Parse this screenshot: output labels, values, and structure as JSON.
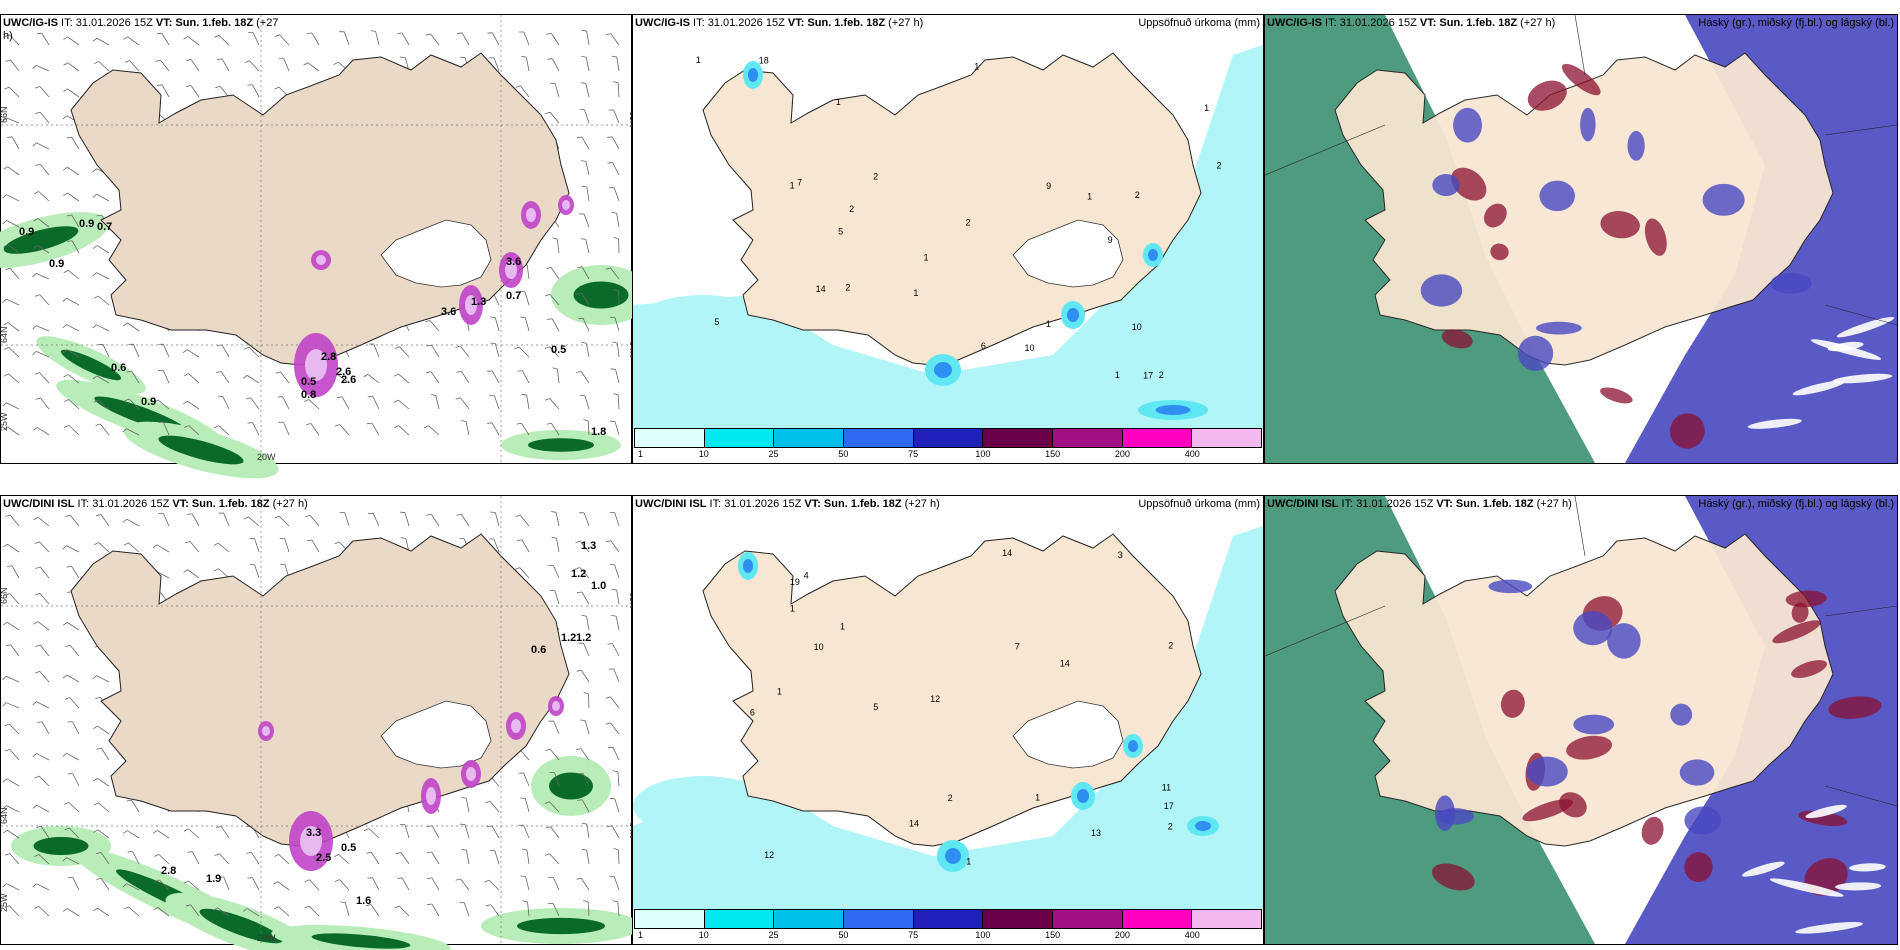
{
  "panels": [
    {
      "id": "p1",
      "title_model": "UWC/IG-IS",
      "title_it": " IT: 31.01.2026 15Z ",
      "title_vt": "VT: Sun. 1.feb. 18Z",
      "title_lead": " (+27",
      "title_lead2": "h)",
      "right_label": "",
      "style": "wind",
      "labels": [
        "0.9",
        "0.9",
        "0.7",
        "0.9",
        "0.6",
        "0.9",
        "2.8",
        "2.6",
        "2.6",
        "3.6",
        "1.3",
        "3.6",
        "0.7",
        "0.8",
        "0.5",
        "0.5",
        "1.8"
      ],
      "axis": [
        "66N",
        "64N",
        "25W",
        "20W",
        "65N",
        "64N"
      ]
    },
    {
      "id": "p2",
      "title_model": "UWC/IG-IS",
      "title_it": " IT: 31.01.2026 15Z ",
      "title_vt": "VT: Sun. 1.feb. 18Z",
      "title_lead": " (+27 h)",
      "right_label": "Uppsöfnuð úrkoma (mm)",
      "style": "precip",
      "labels": [
        "1",
        "1",
        "18",
        "9",
        "2",
        "1",
        "1",
        "5",
        "2",
        "1",
        "2",
        "1",
        "1",
        "1",
        "2",
        "1",
        "2",
        "2",
        "1",
        "2",
        "17",
        "7",
        "10",
        "14",
        "10",
        "9",
        "6",
        "5"
      ]
    },
    {
      "id": "p3",
      "title_model": "UWC/IG-IS",
      "title_it": " IT: 31.01.2026 15Z ",
      "title_vt": "VT: Sun. 1.feb. 18Z",
      "title_lead": " (+27 h)",
      "right_label": "Háský (gr.), miðský (fj.bl.) og lágský (bl.)",
      "style": "cloud"
    },
    {
      "id": "p4",
      "title_model": "UWC/DINI ISL",
      "title_it": " IT: 31.01.2026 15Z ",
      "title_vt": "VT: Sun. 1.feb. 18Z",
      "title_lead": " (+27 h)",
      "right_label": "",
      "style": "wind",
      "labels": [
        "3.3",
        "0.5",
        "2.8",
        "1.9",
        "0.6",
        "1.3",
        "1.2",
        "1.0",
        "1.2",
        "1.2",
        "2.5",
        "1.6"
      ],
      "axis": [
        "66N",
        "64N",
        "25W",
        "20W",
        "65N",
        "64N"
      ]
    },
    {
      "id": "p5",
      "title_model": "UWC/DINI ISL",
      "title_it": " IT: 31.01.2026 15Z ",
      "title_vt": "VT: Sun. 1.feb. 18Z",
      "title_lead": " (+27 h)",
      "right_label": "Uppsöfnuð úrkoma (mm)",
      "style": "precip",
      "labels": [
        "1",
        "1",
        "2",
        "14",
        "2",
        "1",
        "1",
        "3",
        "1",
        "7",
        "10",
        "12",
        "14",
        "14",
        "12",
        "11",
        "6",
        "13",
        "2",
        "4",
        "5",
        "17",
        "19"
      ]
    },
    {
      "id": "p6",
      "title_model": "UWC/DINI ISL",
      "title_it": " IT: 31.01.2026 15Z ",
      "title_vt": "VT: Sun. 1.feb. 18Z",
      "title_lead": " (+27 h)",
      "right_label": "Háský (gr.), miðský (fj.bl.) og lágský (bl.)",
      "style": "cloud"
    }
  ],
  "colorbar": {
    "colors": [
      "#e0ffff",
      "#00e8f0",
      "#00bfe8",
      "#2f6bef",
      "#1f22b8",
      "#6a004a",
      "#a01080",
      "#ff00c0",
      "#f4b8f0"
    ],
    "labels": [
      "1",
      "10",
      "25",
      "50",
      "75",
      "100",
      "150",
      "200",
      "400"
    ]
  },
  "colors": {
    "land": "#f7e6d2",
    "land_wind": "#ead9c6",
    "sea_precip": "#b2f5f7",
    "snow_purple": "#c044c8",
    "green_light": "#b8ecb8",
    "green_dark": "#0a6a2a",
    "cloud_blue": "#4848c0",
    "cloud_red": "#8a1030",
    "cloud_teal": "#2f8a6a"
  }
}
